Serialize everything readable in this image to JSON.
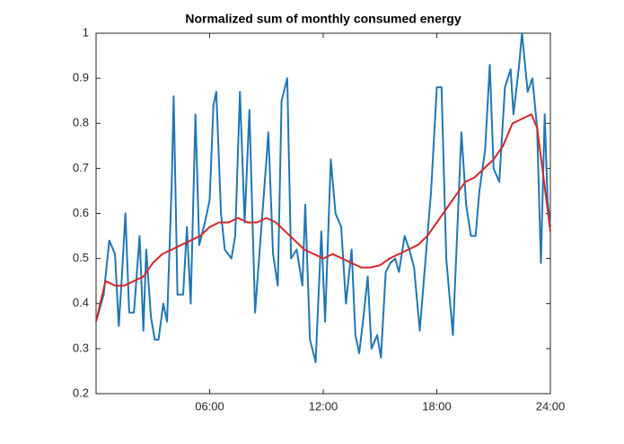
{
  "chart_data": {
    "type": "line",
    "title": "Normalized sum of monthly consumed energy",
    "xlim": [
      0,
      24
    ],
    "xticks": [
      {
        "value": 6,
        "label": "06:00"
      },
      {
        "value": 12,
        "label": "12:00"
      },
      {
        "value": 18,
        "label": "18:00"
      },
      {
        "value": 24,
        "label": "24:00"
      }
    ],
    "ylim": [
      0.2,
      1
    ],
    "yticks": [
      0.2,
      0.3,
      0.4,
      0.5,
      0.6,
      0.7,
      0.8,
      0.9,
      1
    ],
    "grid": false,
    "series": [
      {
        "color": "#1f77b4",
        "x": [
          0,
          0.4,
          0.7,
          1,
          1.2,
          1.35,
          1.55,
          1.75,
          2,
          2.3,
          2.5,
          2.65,
          2.9,
          3.1,
          3.3,
          3.55,
          3.75,
          4,
          4.1,
          4.3,
          4.6,
          4.8,
          5,
          5.25,
          5.45,
          5.75,
          6,
          6.2,
          6.35,
          6.6,
          6.8,
          7.15,
          7.35,
          7.6,
          7.85,
          8.1,
          8.4,
          8.7,
          9,
          9.1,
          9.35,
          9.6,
          9.8,
          10.1,
          10.3,
          10.6,
          10.9,
          11.05,
          11.3,
          11.6,
          11.9,
          12.1,
          12.4,
          12.65,
          12.95,
          13.2,
          13.5,
          13.7,
          13.9,
          14.1,
          14.35,
          14.55,
          14.85,
          15.05,
          15.3,
          15.55,
          15.8,
          16,
          16.3,
          16.55,
          16.8,
          17.1,
          17.35,
          17.7,
          18,
          18.25,
          18.5,
          18.85,
          19,
          19.3,
          19.55,
          19.8,
          20.05,
          20.25,
          20.55,
          20.8,
          21,
          21.3,
          21.6,
          21.9,
          22.05,
          22.35,
          22.5,
          22.8,
          23.05,
          23.3,
          23.5,
          23.7,
          23.85,
          24
        ],
        "values": [
          0.36,
          0.42,
          0.54,
          0.51,
          0.35,
          0.45,
          0.6,
          0.38,
          0.38,
          0.55,
          0.34,
          0.52,
          0.37,
          0.32,
          0.32,
          0.4,
          0.36,
          0.67,
          0.86,
          0.42,
          0.42,
          0.57,
          0.4,
          0.82,
          0.53,
          0.58,
          0.63,
          0.84,
          0.87,
          0.6,
          0.52,
          0.5,
          0.55,
          0.87,
          0.58,
          0.83,
          0.38,
          0.55,
          0.72,
          0.78,
          0.51,
          0.44,
          0.85,
          0.9,
          0.5,
          0.52,
          0.44,
          0.62,
          0.32,
          0.27,
          0.56,
          0.36,
          0.72,
          0.6,
          0.57,
          0.4,
          0.52,
          0.33,
          0.29,
          0.36,
          0.46,
          0.3,
          0.33,
          0.28,
          0.47,
          0.49,
          0.5,
          0.47,
          0.55,
          0.52,
          0.48,
          0.34,
          0.47,
          0.65,
          0.88,
          0.88,
          0.5,
          0.33,
          0.48,
          0.78,
          0.62,
          0.55,
          0.55,
          0.65,
          0.74,
          0.93,
          0.7,
          0.67,
          0.88,
          0.92,
          0.82,
          0.93,
          1,
          0.87,
          0.9,
          0.79,
          0.49,
          0.82,
          0.63,
          0.57
        ]
      },
      {
        "color": "#d62728",
        "x": [
          0,
          0.5,
          1,
          1.5,
          2,
          2.5,
          3,
          3.5,
          4,
          4.5,
          5,
          5.5,
          6,
          6.5,
          7,
          7.5,
          8,
          8.5,
          9,
          9.5,
          10,
          10.5,
          11,
          11.5,
          12,
          12.5,
          13,
          13.5,
          14,
          14.5,
          15,
          15.5,
          16,
          16.5,
          17,
          17.5,
          18,
          18.5,
          19,
          19.5,
          20,
          20.5,
          21,
          21.5,
          22,
          22.5,
          23,
          23.3,
          23.7,
          24
        ],
        "values": [
          0.36,
          0.45,
          0.44,
          0.44,
          0.45,
          0.46,
          0.49,
          0.51,
          0.52,
          0.53,
          0.54,
          0.55,
          0.57,
          0.58,
          0.58,
          0.59,
          0.58,
          0.58,
          0.59,
          0.58,
          0.56,
          0.54,
          0.52,
          0.51,
          0.5,
          0.51,
          0.5,
          0.49,
          0.48,
          0.48,
          0.485,
          0.5,
          0.51,
          0.52,
          0.53,
          0.55,
          0.58,
          0.61,
          0.64,
          0.67,
          0.68,
          0.7,
          0.72,
          0.75,
          0.8,
          0.81,
          0.82,
          0.79,
          0.66,
          0.56
        ]
      }
    ]
  }
}
